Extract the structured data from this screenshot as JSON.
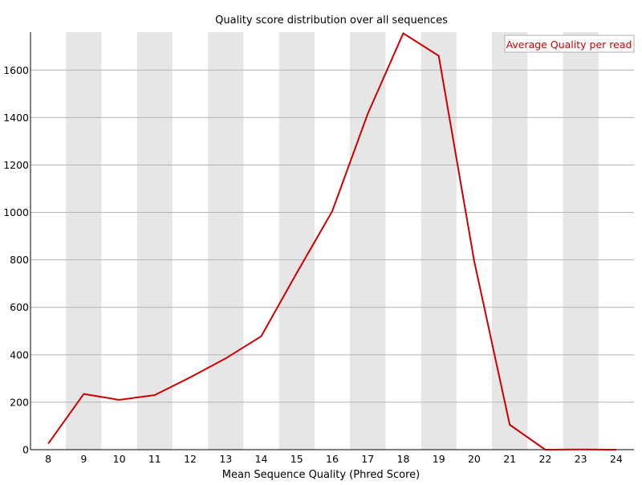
{
  "chart_data": {
    "type": "line",
    "title": "Quality score distribution over all sequences",
    "xlabel": "Mean Sequence Quality (Phred Score)",
    "ylabel": "",
    "categories": [
      "8",
      "9",
      "10",
      "11",
      "12",
      "13",
      "14",
      "15",
      "16",
      "17",
      "18",
      "19",
      "20",
      "21",
      "22",
      "23",
      "24"
    ],
    "ylim": [
      0,
      1760
    ],
    "yticks": [
      "0",
      "200",
      "400",
      "600",
      "800",
      "1000",
      "1200",
      "1400",
      "1600"
    ],
    "series": [
      {
        "name": "Average Quality per read",
        "color": "#cc0000",
        "values": [
          25,
          235,
          210,
          230,
          305,
          385,
          478,
          745,
          1005,
          1415,
          1755,
          1660,
          795,
          105,
          0,
          1,
          0
        ]
      }
    ],
    "grid": true,
    "legend": "top-right",
    "band_color": "#e6e6e6"
  }
}
